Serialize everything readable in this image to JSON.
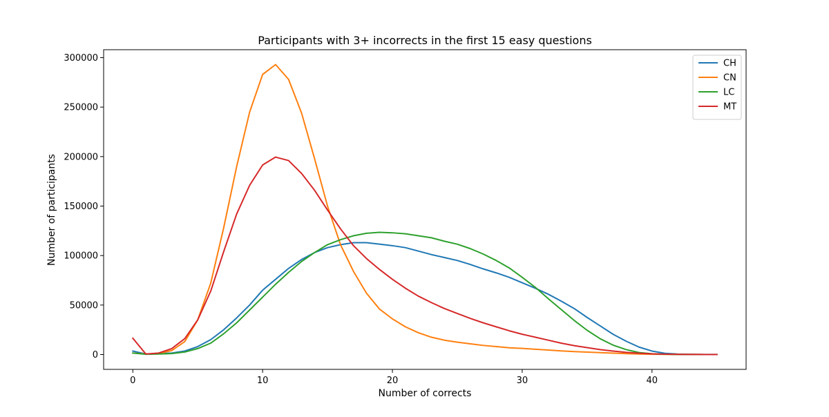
{
  "chart_data": {
    "type": "line",
    "title": "Participants with 3+ incorrects in the first 15 easy questions",
    "xlabel": "Number of corrects",
    "ylabel": "Number of participants",
    "xlim": [
      -2.25,
      47.25
    ],
    "ylim": [
      -15000,
      308000
    ],
    "x_ticks": [
      0,
      10,
      20,
      30,
      40
    ],
    "x_tick_labels": [
      "0",
      "10",
      "20",
      "30",
      "40"
    ],
    "y_ticks": [
      0,
      50000,
      100000,
      150000,
      200000,
      250000,
      300000
    ],
    "y_tick_labels": [
      "0",
      "50000",
      "100000",
      "150000",
      "200000",
      "250000",
      "300000"
    ],
    "grid": false,
    "legend_position": "top-right",
    "x": [
      0,
      1,
      2,
      3,
      4,
      5,
      6,
      7,
      8,
      9,
      10,
      11,
      12,
      13,
      14,
      15,
      16,
      17,
      18,
      19,
      20,
      21,
      22,
      23,
      24,
      25,
      26,
      27,
      28,
      29,
      30,
      31,
      32,
      33,
      34,
      35,
      36,
      37,
      38,
      39,
      40,
      41,
      42,
      43,
      44,
      45
    ],
    "series": [
      {
        "name": "CH",
        "color": "#1f77b4",
        "values": [
          3500,
          500,
          1000,
          1500,
          3500,
          8000,
          15000,
          25000,
          37000,
          50000,
          65000,
          76000,
          87000,
          96000,
          103000,
          108000,
          111000,
          113000,
          113000,
          111500,
          110000,
          108000,
          104500,
          101000,
          98000,
          95000,
          91000,
          86500,
          82500,
          78000,
          72500,
          67000,
          61000,
          54000,
          46500,
          37500,
          29000,
          20500,
          13500,
          7500,
          3500,
          1200,
          400,
          200,
          100,
          100
        ]
      },
      {
        "name": "CN",
        "color": "#ff7f0e",
        "values": [
          1500,
          500,
          1000,
          4000,
          13000,
          35000,
          72000,
          128000,
          190000,
          245000,
          283000,
          293000,
          278000,
          244000,
          198000,
          150000,
          111000,
          84000,
          62000,
          46000,
          36000,
          28000,
          22000,
          17500,
          14500,
          12500,
          10800,
          9200,
          8000,
          6800,
          6200,
          5300,
          4500,
          3700,
          3000,
          2400,
          1900,
          1400,
          900,
          500,
          300,
          150,
          80,
          50,
          40,
          40
        ]
      },
      {
        "name": "LC",
        "color": "#2ca02c",
        "values": [
          1500,
          300,
          500,
          1000,
          2500,
          6000,
          11500,
          21000,
          32000,
          45000,
          58000,
          71000,
          83000,
          94000,
          103000,
          111000,
          116000,
          120000,
          122500,
          123500,
          123000,
          122000,
          120000,
          118000,
          114500,
          111500,
          107000,
          101500,
          95000,
          87500,
          78000,
          68000,
          56500,
          45500,
          34500,
          24500,
          16000,
          9500,
          5000,
          2000,
          800,
          300,
          100,
          50,
          30,
          30
        ]
      },
      {
        "name": "MT",
        "color": "#d62728",
        "values": [
          16500,
          500,
          1500,
          6000,
          16000,
          35000,
          64000,
          104000,
          142000,
          171000,
          191500,
          199500,
          196000,
          183000,
          166000,
          146000,
          127000,
          110000,
          97000,
          86000,
          76000,
          67000,
          59000,
          52500,
          46500,
          41500,
          36500,
          32000,
          28000,
          24000,
          20500,
          17500,
          14500,
          11500,
          9000,
          7000,
          5000,
          3500,
          2200,
          1300,
          700,
          350,
          150,
          80,
          40,
          40
        ]
      }
    ]
  }
}
